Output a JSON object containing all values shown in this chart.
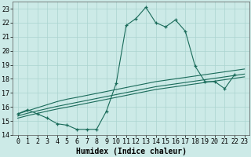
{
  "title": "",
  "xlabel": "Humidex (Indice chaleur)",
  "ylabel": "",
  "bg_color": "#cceae7",
  "grid_color": "#aad4d0",
  "line_color": "#1a6b5a",
  "xlim": [
    -0.5,
    23.5
  ],
  "ylim": [
    14,
    23.5
  ],
  "yticks": [
    14,
    15,
    16,
    17,
    18,
    19,
    20,
    21,
    22,
    23
  ],
  "xticks": [
    0,
    1,
    2,
    3,
    4,
    5,
    6,
    7,
    8,
    9,
    10,
    11,
    12,
    13,
    14,
    15,
    16,
    17,
    18,
    19,
    20,
    21,
    22,
    23
  ],
  "main_y": [
    15.5,
    15.8,
    15.5,
    15.2,
    14.8,
    14.7,
    14.4,
    14.4,
    14.4,
    15.7,
    17.7,
    21.8,
    22.3,
    23.1,
    22.0,
    21.7,
    22.2,
    21.4,
    18.9,
    17.8,
    17.8,
    17.3,
    18.3,
    null
  ],
  "reg1_y": [
    15.5,
    15.72,
    15.94,
    16.16,
    16.38,
    16.55,
    16.68,
    16.82,
    16.96,
    17.1,
    17.24,
    17.38,
    17.52,
    17.66,
    17.8,
    17.9,
    18.0,
    18.1,
    18.2,
    18.3,
    18.4,
    18.5,
    18.6,
    18.7
  ],
  "reg2_y": [
    15.35,
    15.55,
    15.72,
    15.88,
    16.04,
    16.18,
    16.32,
    16.46,
    16.6,
    16.74,
    16.88,
    17.02,
    17.16,
    17.3,
    17.44,
    17.54,
    17.64,
    17.74,
    17.84,
    17.94,
    18.04,
    18.14,
    18.24,
    18.34
  ],
  "reg3_y": [
    15.2,
    15.38,
    15.54,
    15.7,
    15.85,
    15.98,
    16.12,
    16.26,
    16.4,
    16.54,
    16.68,
    16.82,
    16.96,
    17.1,
    17.24,
    17.34,
    17.44,
    17.54,
    17.64,
    17.74,
    17.84,
    17.94,
    18.04,
    18.14
  ],
  "tick_fontsize": 6,
  "xlabel_fontsize": 7
}
